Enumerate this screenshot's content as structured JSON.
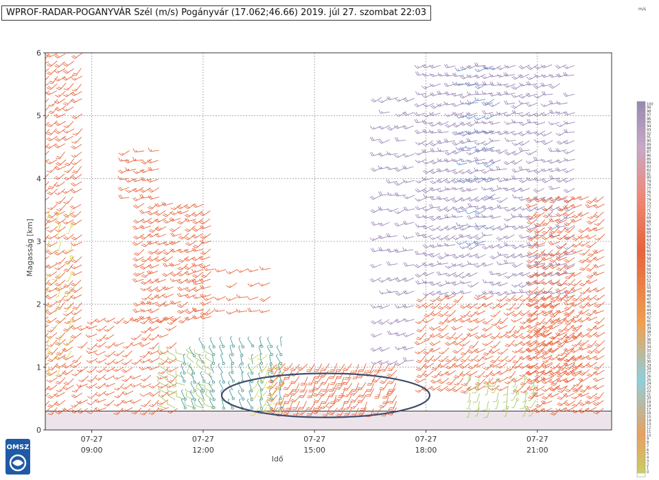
{
  "title": "WPROF-RADAR-POGANYVÁR Szél (m/s) Pogányvár (17.062;46.66) 2019. júl 27. szombat 22:03",
  "corner_mark": "m/s",
  "logo": {
    "text": "OMSZ",
    "colors": {
      "bg": "#ffffff",
      "ink": "#1f5aa6"
    }
  },
  "colors": {
    "frame": "#333333",
    "grid": "#9a9a9a",
    "ground": "#ece4ea",
    "ground_line": "#333333",
    "ellipse": "#3e4b6b",
    "barb_orange": "#e8633a",
    "barb_salmon": "#ee8f6a",
    "barb_yellow": "#d6d84a",
    "barb_green": "#a7c86a",
    "barb_teal": "#4f9a9a",
    "barb_purple": "#9a86b5",
    "barb_blue": "#6d8fd0"
  },
  "chart_data": {
    "type": "wind-barb time-height",
    "title": "WPROF-RADAR-POGANYVÁR Szél (m/s) Pogányvár (17.062;46.66) 2019. júl 27. szombat 22:03",
    "xlabel": "Idő",
    "ylabel": "Magasság [km]",
    "xlim_hours": [
      7.75,
      23.0
    ],
    "ylim_km": [
      0,
      6
    ],
    "yticks": [
      0,
      1,
      2,
      3,
      4,
      5,
      6
    ],
    "xticks": [
      {
        "hour": 9,
        "date": "07-27",
        "time": "09:00"
      },
      {
        "hour": 12,
        "date": "07-27",
        "time": "12:00"
      },
      {
        "hour": 15,
        "date": "07-27",
        "time": "15:00"
      },
      {
        "hour": 18,
        "date": "07-27",
        "time": "18:00"
      },
      {
        "hour": 21,
        "date": "07-27",
        "time": "21:00"
      }
    ],
    "grid": true,
    "ground_level_km": 0.3,
    "annotation": {
      "shape": "ellipse",
      "center_hour": 15.3,
      "center_km": 0.55,
      "rx_hours": 2.8,
      "ry_km": 0.35
    },
    "colorbar": {
      "min": 0,
      "max": 100,
      "step": 1,
      "unit": "m/s",
      "stops": [
        {
          "v": 0,
          "color": "#c8cc66"
        },
        {
          "v": 10,
          "color": "#e8a060"
        },
        {
          "v": 25,
          "color": "#8fcfdc"
        },
        {
          "v": 40,
          "color": "#f0a050"
        },
        {
          "v": 60,
          "color": "#e8633a"
        },
        {
          "v": 75,
          "color": "#f08878"
        },
        {
          "v": 88,
          "color": "#c8a8c8"
        },
        {
          "v": 100,
          "color": "#9a8ab0"
        }
      ]
    },
    "barb_regions": [
      {
        "name": "early-column",
        "t": [
          7.85,
          8.9
        ],
        "h": [
          0.35,
          6.0
        ],
        "dir": 230,
        "speed": 18,
        "color": "barb_orange",
        "dt": 0.22,
        "dh": 0.12
      },
      {
        "name": "early-low-yellow",
        "t": [
          7.85,
          8.5
        ],
        "h": [
          1.0,
          3.6
        ],
        "dir": 200,
        "speed": 8,
        "color": "barb_yellow",
        "dt": 0.3,
        "dh": 0.25
      },
      {
        "name": "morning-low",
        "t": [
          8.9,
          11.5
        ],
        "h": [
          0.35,
          1.9
        ],
        "dir": 235,
        "speed": 15,
        "color": "barb_orange",
        "dt": 0.24,
        "dh": 0.13
      },
      {
        "name": "morning-upper-blob",
        "t": [
          10.4,
          12.2
        ],
        "h": [
          1.8,
          3.6
        ],
        "dir": 240,
        "speed": 20,
        "color": "barb_orange",
        "dt": 0.2,
        "dh": 0.12
      },
      {
        "name": "late-morning-upper",
        "t": [
          12.0,
          14.0
        ],
        "h": [
          1.9,
          2.6
        ],
        "dir": 250,
        "speed": 15,
        "color": "barb_orange",
        "dt": 0.3,
        "dh": 0.22
      },
      {
        "name": "cell-4km",
        "t": [
          10.0,
          10.9
        ],
        "h": [
          3.7,
          4.5
        ],
        "dir": 250,
        "speed": 18,
        "color": "barb_orange",
        "dt": 0.2,
        "dh": 0.15
      },
      {
        "name": "noon-low-green",
        "t": [
          11.0,
          12.3
        ],
        "h": [
          0.35,
          1.2
        ],
        "dir": 300,
        "speed": 8,
        "color": "barb_green",
        "dt": 0.25,
        "dh": 0.12
      },
      {
        "name": "noon-teal",
        "t": [
          11.5,
          14.2
        ],
        "h": [
          0.35,
          1.4
        ],
        "dir": 340,
        "speed": 4,
        "color": "barb_teal",
        "dt": 0.26,
        "dh": 0.14
      },
      {
        "name": "ellipse-core",
        "t": [
          14.0,
          17.3
        ],
        "h": [
          0.35,
          1.1
        ],
        "dir": 210,
        "speed": 20,
        "color": "barb_orange",
        "dt": 0.2,
        "dh": 0.1
      },
      {
        "name": "ellipse-west-yellow",
        "t": [
          13.5,
          14.3
        ],
        "h": [
          0.35,
          1.3
        ],
        "dir": 220,
        "speed": 10,
        "color": "barb_yellow",
        "dt": 0.22,
        "dh": 0.14
      },
      {
        "name": "afternoon-column",
        "t": [
          16.8,
          17.8
        ],
        "h": [
          1.1,
          5.4
        ],
        "dir": 250,
        "speed": 18,
        "color": "barb_purple",
        "dt": 0.22,
        "dh": 0.22
      },
      {
        "name": "evening-upper-purple",
        "t": [
          18.0,
          22.1
        ],
        "h": [
          2.2,
          5.9
        ],
        "dir": 250,
        "speed": 18,
        "color": "barb_purple",
        "dt": 0.2,
        "dh": 0.15
      },
      {
        "name": "evening-upper-blue",
        "t": [
          19.1,
          20.0
        ],
        "h": [
          3.0,
          5.8
        ],
        "dir": 250,
        "speed": 15,
        "color": "barb_blue",
        "dt": 0.25,
        "dh": 0.25
      },
      {
        "name": "evening-mid-orange",
        "t": [
          18.0,
          22.2
        ],
        "h": [
          0.7,
          2.2
        ],
        "dir": 230,
        "speed": 18,
        "color": "barb_orange",
        "dt": 0.2,
        "dh": 0.12
      },
      {
        "name": "evening-low-green",
        "t": [
          19.2,
          21.0
        ],
        "h": [
          0.35,
          0.9
        ],
        "dir": 200,
        "speed": 7,
        "color": "barb_green",
        "dt": 0.25,
        "dh": 0.12
      },
      {
        "name": "late-right-column",
        "t": [
          21.0,
          22.9
        ],
        "h": [
          0.35,
          3.8
        ],
        "dir": 235,
        "speed": 20,
        "color": "barb_orange",
        "dt": 0.2,
        "dh": 0.12
      }
    ]
  }
}
